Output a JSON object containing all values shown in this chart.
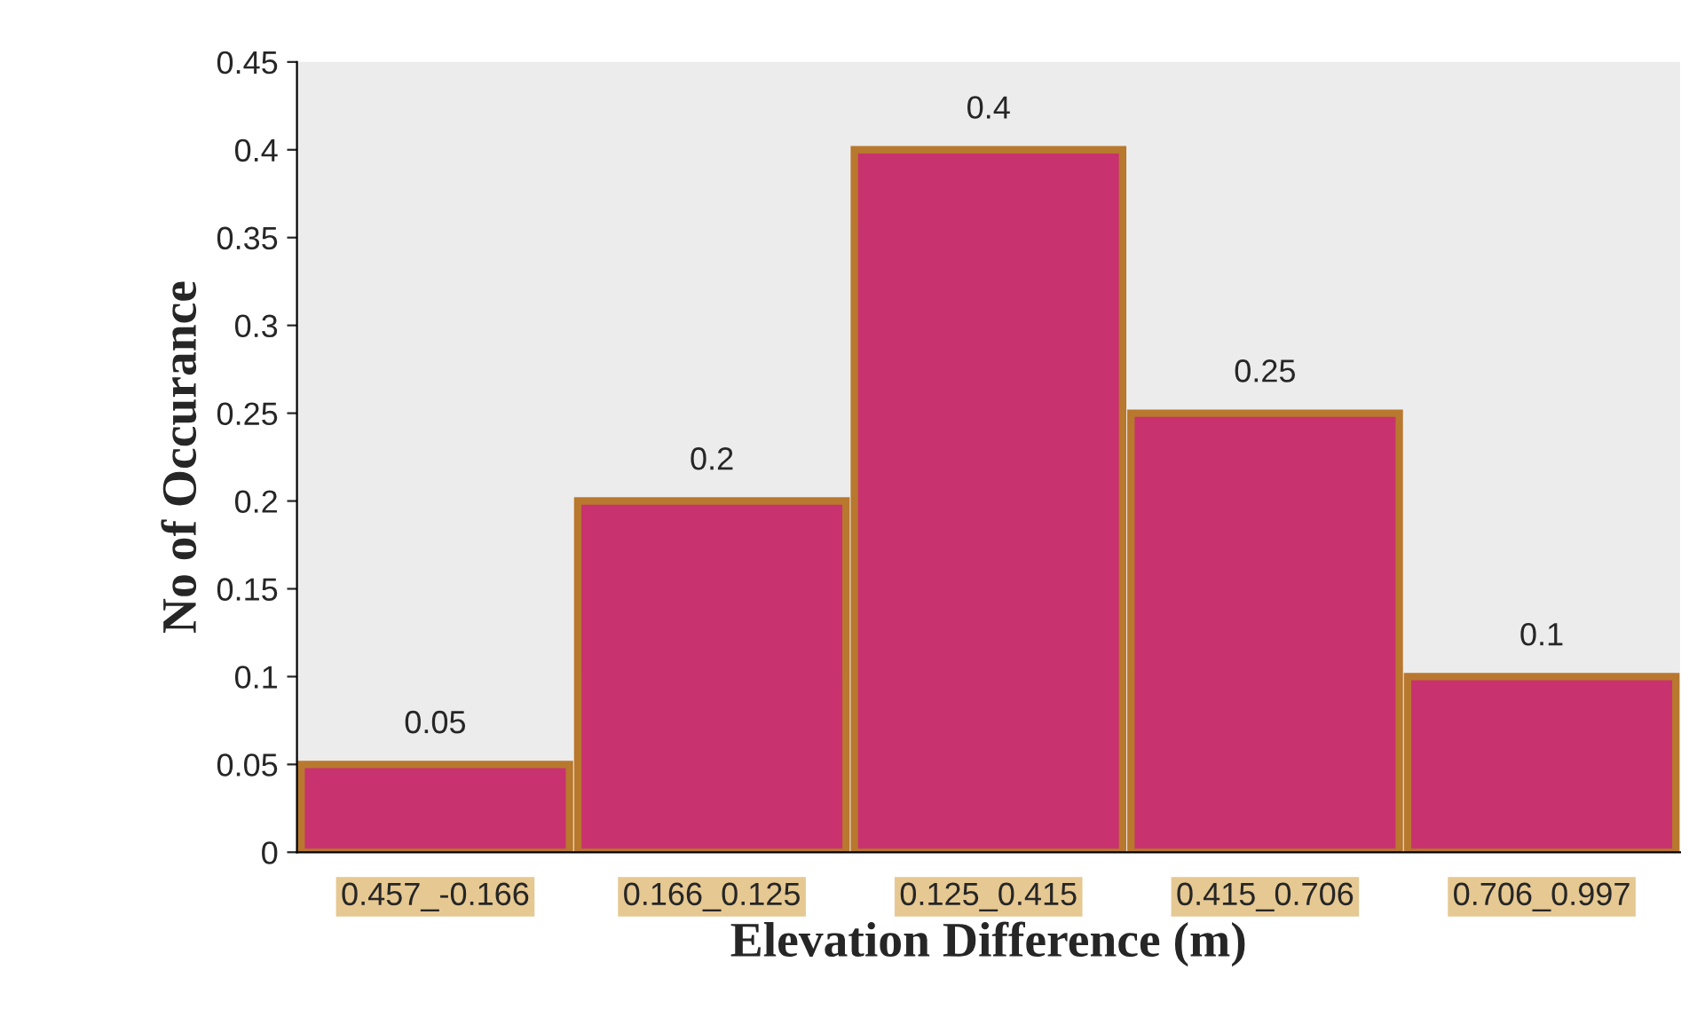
{
  "chart_data": {
    "type": "bar",
    "xlabel": "Elevation Difference (m)",
    "ylabel": "No of Occurance",
    "categories": [
      "0.457_-0.166",
      "0.166_0.125",
      "0.125_0.415",
      "0.415_0.706",
      "0.706_0.997"
    ],
    "values": [
      0.05,
      0.2,
      0.4,
      0.25,
      0.1
    ],
    "color": "#c8326e",
    "ylim": [
      0,
      0.45
    ],
    "yticks": [
      0,
      0.05,
      0.1,
      0.15,
      0.2,
      0.25,
      0.3,
      0.35,
      0.4,
      0.45
    ],
    "data_labels": true,
    "grid": false
  }
}
